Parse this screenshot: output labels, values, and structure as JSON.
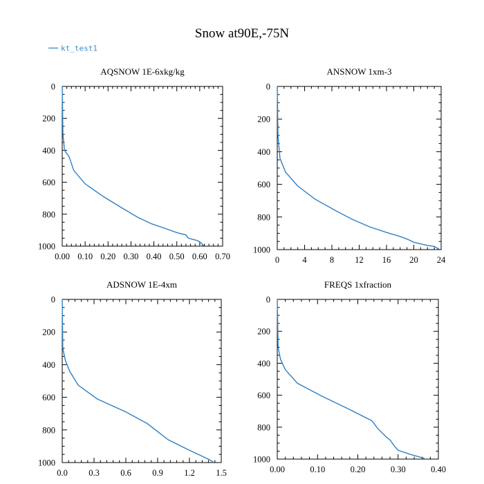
{
  "colors": {
    "series": "#2f7fc1",
    "legend": "#3a8fc9",
    "axes": "#000000"
  },
  "chart_data": {
    "title": "Snow at90E,-75N",
    "legend": {
      "label": "kt_test1",
      "placement": "top-left"
    },
    "panels": [
      {
        "type": "line",
        "title": "AQSNOW  1E-6xkg/kg",
        "xlim": [
          0,
          0.7
        ],
        "ylim": [
          1000,
          0
        ],
        "xticks": [
          0,
          0.1,
          0.2,
          0.3,
          0.4,
          0.5,
          0.6,
          0.7
        ],
        "xtick_labels": [
          "0.00",
          "0.10",
          "0.20",
          "0.30",
          "0.40",
          "0.50",
          "0.60",
          "0.70"
        ],
        "x_minor": 0.02,
        "yticks": [
          0,
          200,
          400,
          600,
          800,
          1000
        ],
        "ytick_labels": [
          "0",
          "200",
          "400",
          "600",
          "800",
          "1000"
        ],
        "y_minor": 50,
        "series": [
          {
            "name": "kt_test1",
            "x": [
              0,
              0.003,
              0.01,
              0.03,
              0.05,
              0.1,
              0.18,
              0.26,
              0.33,
              0.39,
              0.44,
              0.47,
              0.5,
              0.54,
              0.55,
              0.59,
              0.6,
              0.61,
              0.615,
              0.6
            ],
            "y": [
              0,
              300,
              400,
              440,
              525,
              610,
              690,
              760,
              820,
              860,
              885,
              900,
              915,
              930,
              950,
              965,
              975,
              985,
              995,
              1000
            ]
          }
        ]
      },
      {
        "type": "line",
        "title": "ANSNOW  1xm-3",
        "xlim": [
          0,
          24
        ],
        "ylim": [
          1000,
          0
        ],
        "xticks": [
          0,
          4,
          8,
          12,
          16,
          20,
          24
        ],
        "xtick_labels": [
          "0",
          "4",
          "8",
          "12",
          "16",
          "20",
          "24"
        ],
        "x_minor": 1,
        "yticks": [
          0,
          200,
          400,
          600,
          800,
          1000
        ],
        "ytick_labels": [
          "0",
          "200",
          "400",
          "600",
          "800",
          "1000"
        ],
        "y_minor": 50,
        "series": [
          {
            "name": "kt_test1",
            "x": [
              0,
              0.1,
              0.4,
              1.2,
              3,
              5.5,
              8.5,
              11,
              13.5,
              16,
              18,
              19,
              19.5,
              20,
              21,
              22,
              23,
              23.6,
              23.2
            ],
            "y": [
              0,
              300,
              440,
              525,
              610,
              690,
              760,
              815,
              860,
              895,
              920,
              935,
              945,
              955,
              965,
              975,
              980,
              995,
              1000
            ]
          }
        ]
      },
      {
        "type": "line",
        "title": "ADSNOW  1E-4xm",
        "xlim": [
          0,
          1.5
        ],
        "ylim": [
          1000,
          0
        ],
        "xticks": [
          0,
          0.3,
          0.6,
          0.9,
          1.2,
          1.5
        ],
        "xtick_labels": [
          "0.0",
          "0.3",
          "0.6",
          "0.9",
          "1.2",
          "1.5"
        ],
        "x_minor": 0.06,
        "yticks": [
          0,
          200,
          400,
          600,
          800,
          1000
        ],
        "ytick_labels": [
          "0",
          "200",
          "400",
          "600",
          "800",
          "1000"
        ],
        "y_minor": 50,
        "series": [
          {
            "name": "kt_test1",
            "x": [
              0,
              0.005,
              0.03,
              0.07,
              0.15,
              0.33,
              0.6,
              0.8,
              1.0,
              1.2,
              1.3,
              1.38,
              1.42,
              1.42
            ],
            "y": [
              0,
              300,
              375,
              440,
              525,
              610,
              690,
              760,
              860,
              925,
              955,
              980,
              995,
              1000
            ]
          }
        ]
      },
      {
        "type": "line",
        "title": "FREQS  1xfraction",
        "xlim": [
          0,
          0.4
        ],
        "ylim": [
          1000,
          0
        ],
        "xticks": [
          0,
          0.1,
          0.2,
          0.3,
          0.4
        ],
        "xtick_labels": [
          "0.00",
          "0.10",
          "0.20",
          "0.30",
          "0.40"
        ],
        "x_minor": 0.02,
        "yticks": [
          0,
          200,
          400,
          600,
          800,
          1000
        ],
        "ytick_labels": [
          "0",
          "200",
          "400",
          "600",
          "800",
          "1000"
        ],
        "y_minor": 50,
        "series": [
          {
            "name": "kt_test1",
            "x": [
              0,
              0.002,
              0.008,
              0.02,
              0.05,
              0.11,
              0.18,
              0.235,
              0.25,
              0.27,
              0.28,
              0.29,
              0.3,
              0.33,
              0.365
            ],
            "y": [
              0,
              300,
              375,
              440,
              525,
              605,
              690,
              760,
              810,
              860,
              880,
              915,
              945,
              970,
              995
            ]
          }
        ]
      }
    ]
  }
}
